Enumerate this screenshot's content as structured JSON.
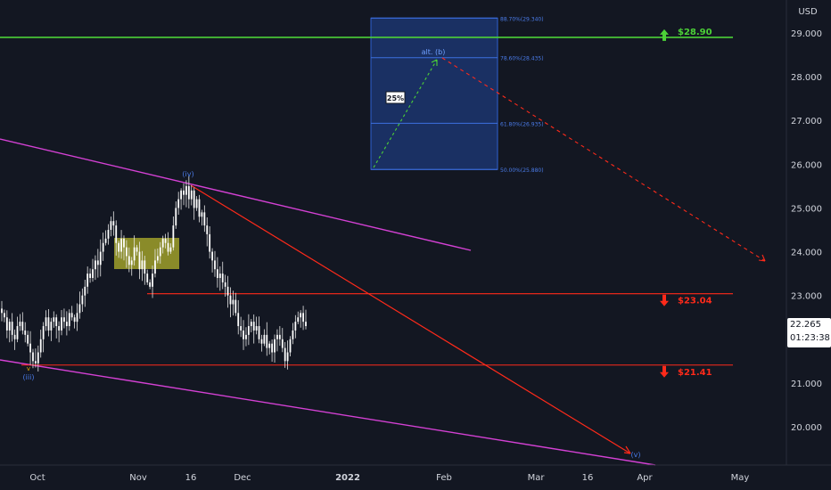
{
  "chart_data": {
    "type": "candlestick",
    "currency_label": "USD",
    "y_axis_ticks": [
      "29.000",
      "28.000",
      "27.000",
      "26.000",
      "25.000",
      "24.000",
      "23.000",
      "22.000",
      "21.000",
      "20.000"
    ],
    "y_tick_values": [
      29,
      28,
      27,
      26,
      25,
      24,
      23,
      22,
      21,
      20
    ],
    "x_axis_ticks": [
      "Oct",
      "Nov",
      "16",
      "Dec",
      "2022",
      "Feb",
      "Mar",
      "16",
      "Apr",
      "May"
    ],
    "ylim": [
      19.15,
      29.85
    ],
    "current_price": "22.265",
    "countdown": "01:23:38",
    "levels": [
      {
        "label": "$28.90",
        "value": 28.9,
        "color": "#4cd137",
        "arrow": "up"
      },
      {
        "label": "$23.04",
        "value": 23.04,
        "color": "#ff2a1a",
        "arrow": "down"
      },
      {
        "label": "$21.41",
        "value": 21.41,
        "color": "#ff2a1a",
        "arrow": "down"
      }
    ],
    "fib_levels": [
      {
        "label": "88.70%(29.340)",
        "value": 29.34
      },
      {
        "label": "78.60%(28.435)",
        "value": 28.435
      },
      {
        "label": "61.80%(26.935)",
        "value": 26.935
      },
      {
        "label": "50.00%(25.880)",
        "value": 25.88
      }
    ],
    "wave_labels": [
      "(iv)",
      "(iii)",
      "(v)",
      "alt. (b)"
    ],
    "percent_tag": "25%",
    "series": [
      {
        "values": [
          22.6,
          22.5,
          22.2,
          22.4,
          22.1,
          22.0,
          22.3,
          22.4,
          22.2,
          22.1,
          21.9,
          21.7,
          21.5,
          21.45,
          21.7,
          22.0,
          22.3,
          22.5,
          22.2,
          22.4,
          22.5,
          22.3,
          22.2,
          22.5,
          22.4,
          22.3,
          22.6,
          22.5,
          22.4,
          22.6,
          22.8,
          23.0,
          23.2,
          23.5,
          23.4,
          23.6,
          23.8,
          23.7,
          24.0,
          24.2,
          24.3,
          24.5,
          24.7,
          24.6,
          24.2,
          24.0,
          24.3,
          24.1,
          23.9,
          23.7,
          23.8,
          24.1,
          24.0,
          23.6,
          23.8,
          23.5,
          23.3,
          23.2,
          23.5,
          23.8,
          23.9,
          24.1,
          24.3,
          24.2,
          24.0,
          24.1,
          24.6,
          25.0,
          25.2,
          25.4,
          25.3,
          25.5,
          25.2,
          25.4,
          25.0,
          25.2,
          24.8,
          24.9,
          24.6,
          24.4,
          24.0,
          23.8,
          23.6,
          23.4,
          23.5,
          23.3,
          23.2,
          23.0,
          22.8,
          22.9,
          22.6,
          22.3,
          22.2,
          22.0,
          22.1,
          22.3,
          22.4,
          22.2,
          22.3,
          22.0,
          21.9,
          22.1,
          21.8,
          21.9,
          21.7,
          22.0,
          22.1,
          22.0,
          21.8,
          21.5,
          21.7,
          22.0,
          22.2,
          22.4,
          22.5,
          22.6,
          22.4,
          22.3
        ]
      }
    ]
  }
}
